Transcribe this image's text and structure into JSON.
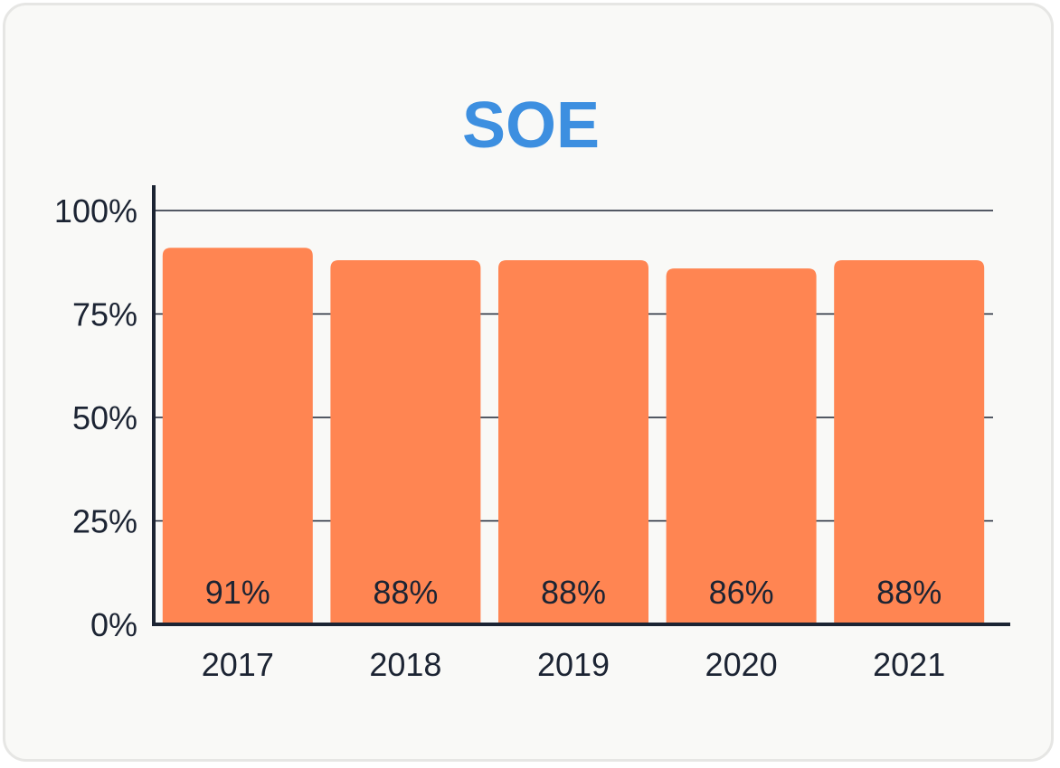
{
  "chart_data": {
    "type": "bar",
    "title": "SOE",
    "categories": [
      "2017",
      "2018",
      "2019",
      "2020",
      "2021"
    ],
    "values": [
      91,
      88,
      88,
      86,
      88
    ],
    "data_labels": [
      "91%",
      "88%",
      "88%",
      "86%",
      "88%"
    ],
    "xlabel": "",
    "ylabel": "",
    "ylim": [
      0,
      100
    ],
    "yticks": [
      0,
      25,
      50,
      75,
      100
    ],
    "ytick_labels": [
      "0%",
      "25%",
      "50%",
      "75%",
      "100%"
    ],
    "grid": true,
    "legend": "none",
    "colors": {
      "bar": "#ff8552",
      "title": "#3d8fe0",
      "axis": "#1c2433",
      "text": "#1c2433",
      "background": "#f9f9f7"
    }
  }
}
